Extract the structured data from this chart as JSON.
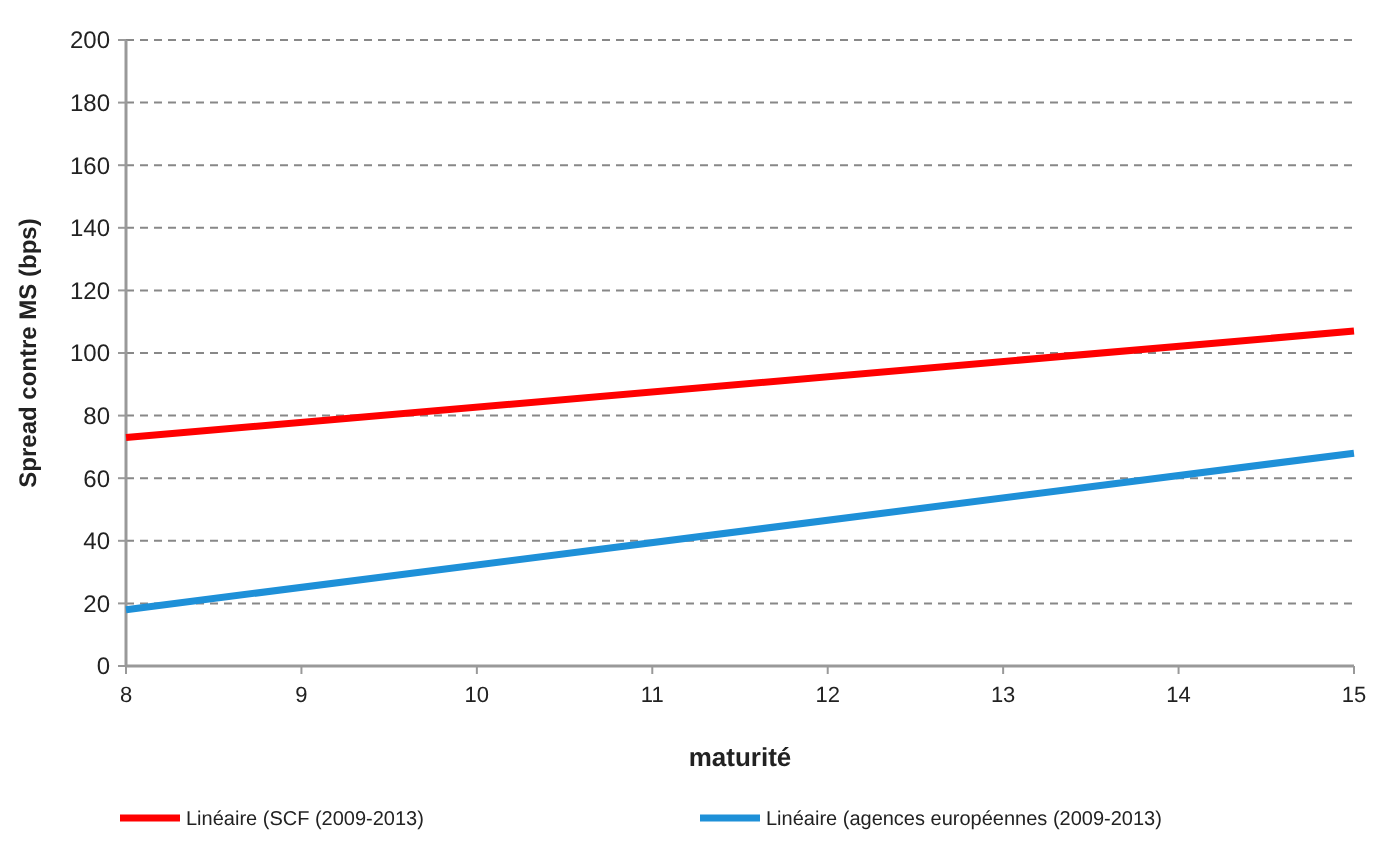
{
  "chart_data": {
    "type": "line",
    "xlabel": "maturité",
    "ylabel": "Spread contre MS (bps)",
    "x": [
      8,
      15
    ],
    "series": [
      {
        "name": "Linéaire (SCF (2009-2013)",
        "color": "#ff0000",
        "values": [
          73,
          107
        ]
      },
      {
        "name": "Linéaire (agences européennes (2009-2013)",
        "color": "#1e90d8",
        "values": [
          18,
          68
        ]
      }
    ],
    "xlim": [
      8,
      15
    ],
    "xticks": [
      8,
      9,
      10,
      11,
      12,
      13,
      14,
      15
    ],
    "ylim": [
      0,
      200
    ],
    "yticks": [
      0,
      20,
      40,
      60,
      80,
      100,
      120,
      140,
      160,
      180,
      200
    ],
    "grid": "y",
    "legend": "bottom",
    "marker": "none",
    "line_style": "solid"
  }
}
